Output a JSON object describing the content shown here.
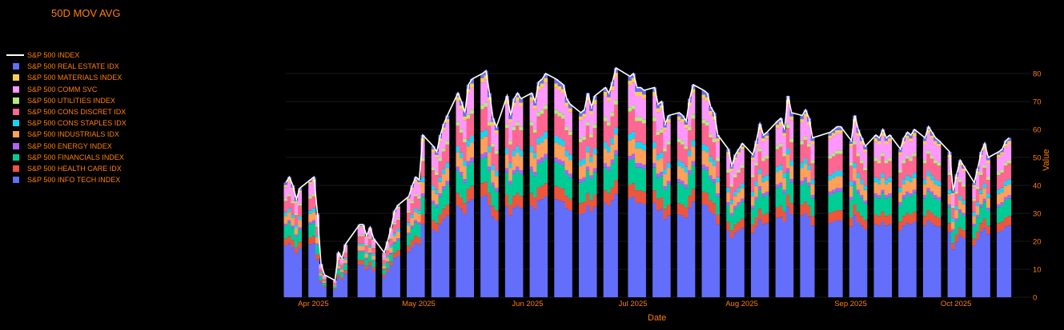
{
  "chart_data": {
    "type": "bar",
    "title": "50D MOV AVG",
    "xlabel": "Date",
    "ylabel": "Value",
    "ylim": [
      0,
      88
    ],
    "yticks": [
      0,
      10,
      20,
      30,
      40,
      50,
      60,
      70,
      80
    ],
    "xticks": [
      {
        "date": "2025-04-01",
        "label": "Apr 2025"
      },
      {
        "date": "2025-05-01",
        "label": "May 2025"
      },
      {
        "date": "2025-06-01",
        "label": "Jun 2025"
      },
      {
        "date": "2025-07-01",
        "label": "Jul 2025"
      },
      {
        "date": "2025-08-01",
        "label": "Aug 2025"
      },
      {
        "date": "2025-09-01",
        "label": "Sep 2025"
      },
      {
        "date": "2025-10-01",
        "label": "Oct 2025"
      }
    ],
    "x_range": [
      "2025-03-31",
      "2025-10-29"
    ],
    "grid": true,
    "legend_position": "left",
    "stack_order": [
      "S&P 500 INFO TECH INDEX",
      "S&P 500 HEALTH CARE IDX",
      "S&P 500 FINANCIALS INDEX",
      "S&P 500 ENERGY INDEX",
      "S&P 500 INDUSTRIALS IDX",
      "S&P 500 CONS STAPLES IDX",
      "S&P 500 CONS DISCRET IDX",
      "S&P 500 UTILITIES INDEX",
      "S&P 500 COMM SVC",
      "S&P 500 MATERIALS INDEX",
      "S&P 500 REAL ESTATE IDX"
    ],
    "colors": {
      "S&P 500 INFO TECH INDEX": "#636efa",
      "S&P 500 HEALTH CARE IDX": "#ef553b",
      "S&P 500 FINANCIALS INDEX": "#00cc96",
      "S&P 500 ENERGY INDEX": "#ab63fa",
      "S&P 500 INDUSTRIALS IDX": "#ffa15a",
      "S&P 500 CONS STAPLES IDX": "#19d3f3",
      "S&P 500 CONS DISCRET IDX": "#ff6692",
      "S&P 500 UTILITIES INDEX": "#b6e880",
      "S&P 500 COMM SVC": "#ff97ff",
      "S&P 500 MATERIALS INDEX": "#fecb52",
      "S&P 500 REAL ESTATE IDX": "#636efa",
      "S&P 500 INDEX": "#ffffff"
    },
    "index_line": [
      [
        "2025-03-31",
        41
      ],
      [
        "2025-04-01",
        43
      ],
      [
        "2025-04-02",
        40
      ],
      [
        "2025-04-03",
        35
      ],
      [
        "2025-04-04",
        39
      ],
      [
        "2025-04-07",
        42
      ],
      [
        "2025-04-08",
        43
      ],
      [
        "2025-04-09",
        30
      ],
      [
        "2025-04-10",
        12
      ],
      [
        "2025-04-11",
        8
      ],
      [
        "2025-04-14",
        6
      ],
      [
        "2025-04-15",
        16
      ],
      [
        "2025-04-16",
        14
      ],
      [
        "2025-04-17",
        19
      ],
      [
        "2025-04-21",
        26
      ],
      [
        "2025-04-22",
        26
      ],
      [
        "2025-04-23",
        22
      ],
      [
        "2025-04-24",
        25
      ],
      [
        "2025-04-25",
        21
      ],
      [
        "2025-04-28",
        16
      ],
      [
        "2025-04-29",
        20
      ],
      [
        "2025-04-30",
        25
      ],
      [
        "2025-05-01",
        31
      ],
      [
        "2025-05-02",
        33
      ],
      [
        "2025-05-05",
        36
      ],
      [
        "2025-05-06",
        40
      ],
      [
        "2025-05-07",
        43
      ],
      [
        "2025-05-08",
        42
      ],
      [
        "2025-05-09",
        58
      ],
      [
        "2025-05-12",
        54
      ],
      [
        "2025-05-13",
        52
      ],
      [
        "2025-05-14",
        58
      ],
      [
        "2025-05-15",
        62
      ],
      [
        "2025-05-16",
        65
      ],
      [
        "2025-05-19",
        73
      ],
      [
        "2025-05-20",
        70
      ],
      [
        "2025-05-21",
        66
      ],
      [
        "2025-05-22",
        76
      ],
      [
        "2025-05-23",
        78
      ],
      [
        "2025-05-26",
        80
      ],
      [
        "2025-05-27",
        81
      ],
      [
        "2025-05-28",
        73
      ],
      [
        "2025-05-29",
        64
      ],
      [
        "2025-05-30",
        61
      ],
      [
        "2025-06-02",
        72
      ],
      [
        "2025-06-03",
        65
      ],
      [
        "2025-06-04",
        71
      ],
      [
        "2025-06-05",
        73
      ],
      [
        "2025-06-06",
        71
      ],
      [
        "2025-06-09",
        73
      ],
      [
        "2025-06-10",
        70
      ],
      [
        "2025-06-11",
        77
      ],
      [
        "2025-06-12",
        78
      ],
      [
        "2025-06-13",
        80
      ],
      [
        "2025-06-16",
        78
      ],
      [
        "2025-06-17",
        77
      ],
      [
        "2025-06-18",
        76
      ],
      [
        "2025-06-19",
        71
      ],
      [
        "2025-06-20",
        69
      ],
      [
        "2025-06-23",
        66
      ],
      [
        "2025-06-24",
        67
      ],
      [
        "2025-06-25",
        73
      ],
      [
        "2025-06-26",
        68
      ],
      [
        "2025-06-27",
        72
      ],
      [
        "2025-06-30",
        75
      ],
      [
        "2025-07-01",
        73
      ],
      [
        "2025-07-02",
        77
      ],
      [
        "2025-07-03",
        82
      ],
      [
        "2025-07-07",
        79
      ],
      [
        "2025-07-08",
        80
      ],
      [
        "2025-07-09",
        75
      ],
      [
        "2025-07-10",
        75
      ],
      [
        "2025-07-11",
        74
      ],
      [
        "2025-07-14",
        75
      ],
      [
        "2025-07-15",
        69
      ],
      [
        "2025-07-16",
        70
      ],
      [
        "2025-07-17",
        62
      ],
      [
        "2025-07-18",
        65
      ],
      [
        "2025-07-21",
        66
      ],
      [
        "2025-07-22",
        65
      ],
      [
        "2025-07-23",
        63
      ],
      [
        "2025-07-24",
        71
      ],
      [
        "2025-07-25",
        76
      ],
      [
        "2025-07-28",
        74
      ],
      [
        "2025-07-29",
        73
      ],
      [
        "2025-07-30",
        68
      ],
      [
        "2025-07-31",
        66
      ],
      [
        "2025-08-01",
        58
      ],
      [
        "2025-08-04",
        53
      ],
      [
        "2025-08-05",
        47
      ],
      [
        "2025-08-06",
        51
      ],
      [
        "2025-08-07",
        53
      ],
      [
        "2025-08-08",
        55
      ],
      [
        "2025-08-11",
        51
      ],
      [
        "2025-08-12",
        56
      ],
      [
        "2025-08-13",
        62
      ],
      [
        "2025-08-14",
        58
      ],
      [
        "2025-08-15",
        59
      ],
      [
        "2025-08-18",
        63
      ],
      [
        "2025-08-19",
        64
      ],
      [
        "2025-08-20",
        60
      ],
      [
        "2025-08-21",
        72
      ],
      [
        "2025-08-22",
        66
      ],
      [
        "2025-08-25",
        65
      ],
      [
        "2025-08-26",
        67
      ],
      [
        "2025-08-27",
        64
      ],
      [
        "2025-08-28",
        57
      ],
      [
        "2025-09-02",
        59
      ],
      [
        "2025-09-03",
        60
      ],
      [
        "2025-09-04",
        61
      ],
      [
        "2025-09-05",
        61
      ],
      [
        "2025-09-08",
        56
      ],
      [
        "2025-09-09",
        65
      ],
      [
        "2025-09-10",
        60
      ],
      [
        "2025-09-11",
        57
      ],
      [
        "2025-09-12",
        54
      ],
      [
        "2025-09-15",
        58
      ],
      [
        "2025-09-16",
        57
      ],
      [
        "2025-09-17",
        60
      ],
      [
        "2025-09-18",
        57
      ],
      [
        "2025-09-19",
        58
      ],
      [
        "2025-09-22",
        53
      ],
      [
        "2025-09-23",
        57
      ],
      [
        "2025-09-24",
        59
      ],
      [
        "2025-09-25",
        58
      ],
      [
        "2025-09-26",
        60
      ],
      [
        "2025-09-29",
        57
      ],
      [
        "2025-09-30",
        61
      ],
      [
        "2025-10-01",
        59
      ],
      [
        "2025-10-02",
        57
      ],
      [
        "2025-10-03",
        56
      ],
      [
        "2025-10-06",
        52
      ],
      [
        "2025-10-07",
        38
      ],
      [
        "2025-10-08",
        44
      ],
      [
        "2025-10-09",
        49
      ],
      [
        "2025-10-10",
        47
      ],
      [
        "2025-10-13",
        41
      ],
      [
        "2025-10-14",
        46
      ],
      [
        "2025-10-15",
        52
      ],
      [
        "2025-10-16",
        55
      ],
      [
        "2025-10-17",
        50
      ],
      [
        "2025-10-20",
        52
      ],
      [
        "2025-10-21",
        53
      ],
      [
        "2025-10-22",
        56
      ],
      [
        "2025-10-23",
        57
      ]
    ]
  },
  "legend": [
    {
      "name": "S&P 500 INDEX",
      "kind": "line",
      "color": "#ffffff"
    },
    {
      "name": "S&P 500 REAL ESTATE IDX",
      "kind": "bar",
      "color": "#636efa"
    },
    {
      "name": "S&P 500 MATERIALS INDEX",
      "kind": "bar",
      "color": "#fecb52"
    },
    {
      "name": "S&P 500 COMM SVC",
      "kind": "bar",
      "color": "#ff97ff"
    },
    {
      "name": "S&P 500 UTILITIES INDEX",
      "kind": "bar",
      "color": "#b6e880"
    },
    {
      "name": "S&P 500 CONS DISCRET IDX",
      "kind": "bar",
      "color": "#ff6692"
    },
    {
      "name": "S&P 500 CONS STAPLES IDX",
      "kind": "bar",
      "color": "#19d3f3"
    },
    {
      "name": "S&P 500 INDUSTRIALS IDX",
      "kind": "bar",
      "color": "#ffa15a"
    },
    {
      "name": "S&P 500 ENERGY INDEX",
      "kind": "bar",
      "color": "#ab63fa"
    },
    {
      "name": "S&P 500 FINANCIALS INDEX",
      "kind": "bar",
      "color": "#00cc96"
    },
    {
      "name": "S&P 500 HEALTH CARE IDX",
      "kind": "bar",
      "color": "#ef553b"
    },
    {
      "name": "S&P 500 INFO TECH INDEX",
      "kind": "bar",
      "color": "#636efa"
    }
  ]
}
